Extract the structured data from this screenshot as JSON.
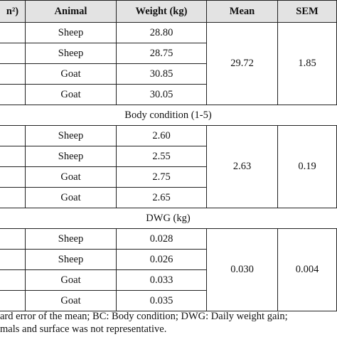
{
  "header": [
    "n²)",
    "Animal",
    "Weight (kg)",
    "Mean",
    "SEM"
  ],
  "sections": [
    {
      "label": null,
      "rows": [
        {
          "animal": "Sheep",
          "weight": "28.80"
        },
        {
          "animal": "Sheep",
          "weight": "28.75"
        },
        {
          "animal": "Goat",
          "weight": "30.85"
        },
        {
          "animal": "Goat",
          "weight": "30.05"
        }
      ],
      "mean": "29.72",
      "sem": "1.85"
    },
    {
      "label": "Body condition (1-5)",
      "rows": [
        {
          "animal": "Sheep",
          "weight": "2.60"
        },
        {
          "animal": "Sheep",
          "weight": "2.55"
        },
        {
          "animal": "Goat",
          "weight": "2.75"
        },
        {
          "animal": "Goat",
          "weight": "2.65"
        }
      ],
      "mean": "2.63",
      "sem": "0.19"
    },
    {
      "label": "DWG (kg)",
      "rows": [
        {
          "animal": "Sheep",
          "weight": "0.028"
        },
        {
          "animal": "Sheep",
          "weight": "0.026"
        },
        {
          "animal": "Goat",
          "weight": "0.033"
        },
        {
          "animal": "Goat",
          "weight": "0.035"
        }
      ],
      "mean": "0.030",
      "sem": "0.004"
    }
  ],
  "footnote": [
    "ard error of the mean; BC: Body condition; DWG: Daily weight gain;",
    "mals and surface was not representative."
  ]
}
